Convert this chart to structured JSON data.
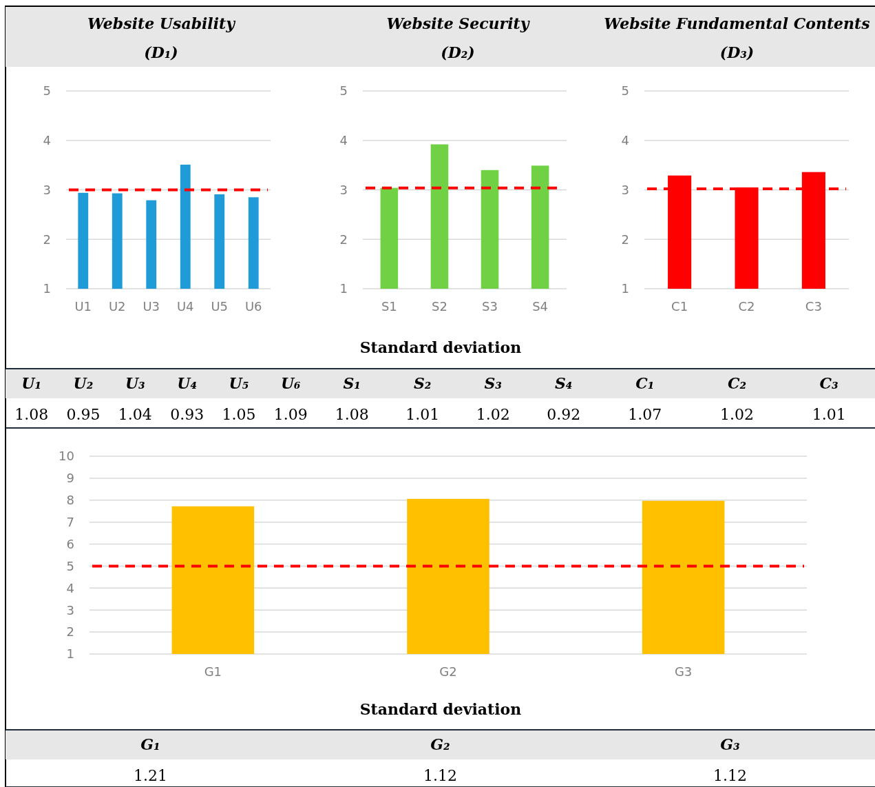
{
  "chart_data": [
    {
      "type": "bar",
      "title": "Website Usability",
      "subtitle": "(D₁)",
      "categories": [
        "U1",
        "U2",
        "U3",
        "U4",
        "U5",
        "U6"
      ],
      "values": [
        2.94,
        2.93,
        2.79,
        3.51,
        2.91,
        2.85
      ],
      "color": "#1f9bd7",
      "ylim": [
        1,
        5
      ],
      "yticks": [
        1,
        2,
        3,
        4,
        5
      ],
      "grid": "y",
      "ref_lines": [
        {
          "axis": "y",
          "value": 3.0,
          "color": "#ff0000",
          "line_style": "dashed"
        }
      ]
    },
    {
      "type": "bar",
      "title": "Website Security",
      "subtitle": "(D₂)",
      "categories": [
        "S1",
        "S2",
        "S3",
        "S4"
      ],
      "values": [
        3.04,
        3.92,
        3.4,
        3.49
      ],
      "color": "#6fd143",
      "ylim": [
        1,
        5
      ],
      "yticks": [
        1,
        2,
        3,
        4,
        5
      ],
      "grid": "y",
      "ref_lines": [
        {
          "axis": "y",
          "value": 3.04,
          "color": "#ff0000",
          "line_style": "dashed"
        }
      ]
    },
    {
      "type": "bar",
      "title": "Website Fundamental Contents",
      "subtitle": "(D₃)",
      "categories": [
        "C1",
        "C2",
        "C3"
      ],
      "values": [
        3.29,
        3.05,
        3.36
      ],
      "color": "#ff0000",
      "ylim": [
        1,
        5
      ],
      "yticks": [
        1,
        2,
        3,
        4,
        5
      ],
      "grid": "y",
      "ref_lines": [
        {
          "axis": "y",
          "value": 3.02,
          "color": "#ff0000",
          "line_style": "dashed"
        }
      ]
    },
    {
      "type": "other",
      "title": "Standard deviation",
      "categories": [
        "U₁",
        "U₂",
        "U₃",
        "U₄",
        "U₅",
        "U₆",
        "S₁",
        "S₂",
        "S₃",
        "S₄",
        "C₁",
        "C₂",
        "C₃"
      ],
      "values": [
        1.08,
        0.95,
        1.04,
        0.93,
        1.05,
        1.09,
        1.08,
        1.01,
        1.02,
        0.92,
        1.07,
        1.02,
        1.01
      ],
      "value_labels": [
        "1.08",
        "0.95",
        "1.04",
        "0.93",
        "1.05",
        "1.09",
        "1.08",
        "1.01",
        "1.02",
        "0.92",
        "1.07",
        "1.02",
        "1.01"
      ]
    },
    {
      "type": "bar",
      "categories": [
        "G1",
        "G2",
        "G3"
      ],
      "values": [
        7.72,
        8.06,
        7.97
      ],
      "color": "#ffc000",
      "ylim": [
        1,
        10
      ],
      "yticks": [
        1,
        2,
        3,
        4,
        5,
        6,
        7,
        8,
        9,
        10
      ],
      "grid": "y",
      "ref_lines": [
        {
          "axis": "y",
          "value": 5,
          "color": "#ff0000",
          "line_style": "dashed"
        }
      ]
    },
    {
      "type": "other",
      "title": "Standard deviation",
      "categories": [
        "G₁",
        "G₂",
        "G₃"
      ],
      "values": [
        1.21,
        1.12,
        1.12
      ],
      "value_labels": [
        "1.21",
        "1.12",
        "1.12"
      ]
    }
  ]
}
